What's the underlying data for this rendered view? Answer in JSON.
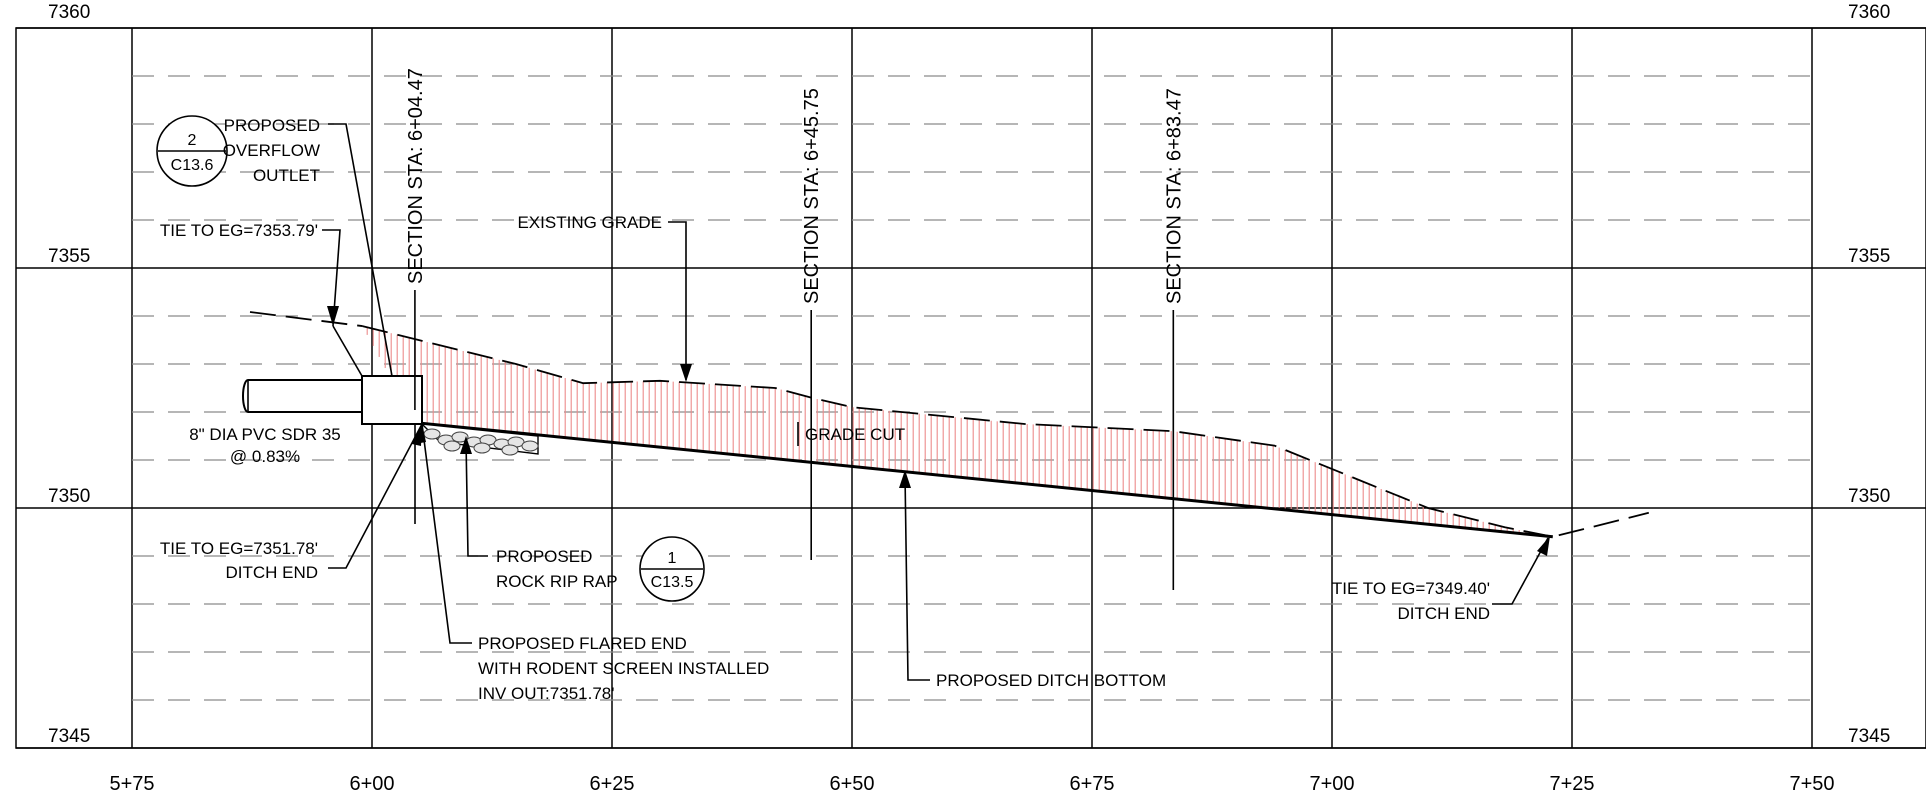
{
  "chart_data": {
    "type": "profile",
    "x_axis": {
      "range": [
        "5+75",
        "7+50"
      ],
      "tick_labels": [
        "5+75",
        "6+00",
        "6+25",
        "6+50",
        "6+75",
        "7+00",
        "7+25",
        "7+50"
      ]
    },
    "y_axis": {
      "range": [
        7345,
        7360
      ],
      "tick_labels": [
        "7360",
        "7355",
        "7350",
        "7345"
      ]
    },
    "series": [
      {
        "label": "EXISTING GRADE",
        "style": "dashed",
        "points": [
          {
            "station": 5.99,
            "elev": 7353.79
          },
          {
            "station": 6.15,
            "elev": 7353.0
          },
          {
            "station": 6.22,
            "elev": 7352.6
          },
          {
            "station": 6.3,
            "elev": 7352.65
          },
          {
            "station": 6.42,
            "elev": 7352.5
          },
          {
            "station": 6.4575,
            "elev": 7352.3
          },
          {
            "station": 6.5,
            "elev": 7352.1
          },
          {
            "station": 6.68,
            "elev": 7351.75
          },
          {
            "station": 6.8347,
            "elev": 7351.6
          },
          {
            "station": 6.94,
            "elev": 7351.3
          },
          {
            "station": 7.1,
            "elev": 7350.0
          },
          {
            "station": 7.18,
            "elev": 7349.6
          },
          {
            "station": 7.23,
            "elev": 7349.4
          },
          {
            "station": 7.33,
            "elev": 7349.9
          }
        ]
      },
      {
        "label": "PROPOSED DITCH BOTTOM",
        "style": "solid",
        "points": [
          {
            "station": 6.0447,
            "elev": 7351.78
          },
          {
            "station": 7.23,
            "elev": 7349.4
          }
        ]
      }
    ],
    "grid": true,
    "sections": [
      {
        "label": "SECTION STA: 6+04.47",
        "station": 6.0447
      },
      {
        "label": "SECTION STA: 6+45.75",
        "station": 6.4575
      },
      {
        "label": "SECTION STA: 6+83.47",
        "station": 6.8347
      }
    ],
    "annotations": [
      "PROPOSED",
      "OVERFLOW",
      "OUTLET",
      "TIE TO EG=7353.79'",
      "EXISTING GRADE",
      "8\" DIA PVC SDR 35",
      "@ 0.83%",
      "GRADE CUT",
      "TIE TO EG=7351.78'",
      "DITCH END",
      "PROPOSED",
      "ROCK RIP RAP",
      "PROPOSED FLARED END",
      "WITH RODENT SCREEN INSTALLED",
      "INV OUT:7351.78'",
      "PROPOSED DITCH BOTTOM",
      "TIE TO EG=7349.40'",
      "DITCH END"
    ],
    "detail_callouts": [
      {
        "number": "2",
        "sheet": "C13.6"
      },
      {
        "number": "1",
        "sheet": "C13.5"
      }
    ]
  }
}
